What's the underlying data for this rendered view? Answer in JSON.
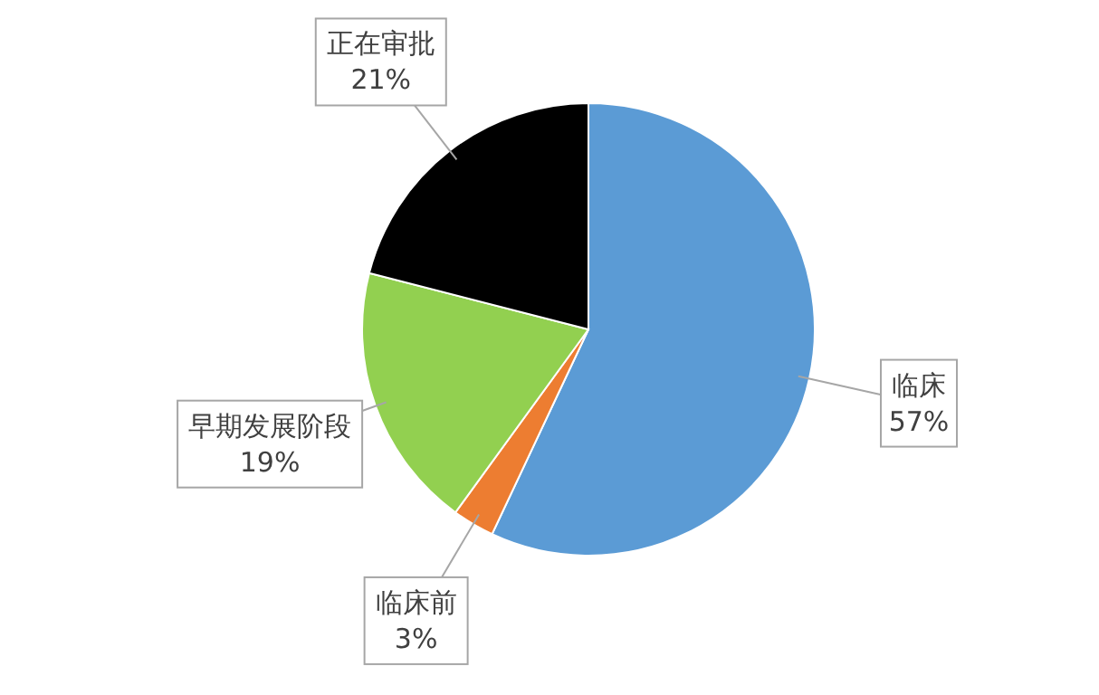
{
  "chart_data": {
    "type": "pie",
    "categories": [
      "临床",
      "临床前",
      "早期发展阶段",
      "正在审批"
    ],
    "values": [
      57,
      3,
      19,
      21
    ],
    "colors": [
      "#5b9bd5",
      "#ed7d31",
      "#92d050",
      "#000000"
    ],
    "value_labels": [
      "57%",
      "3%",
      "19%",
      "21%"
    ],
    "legend": false
  }
}
